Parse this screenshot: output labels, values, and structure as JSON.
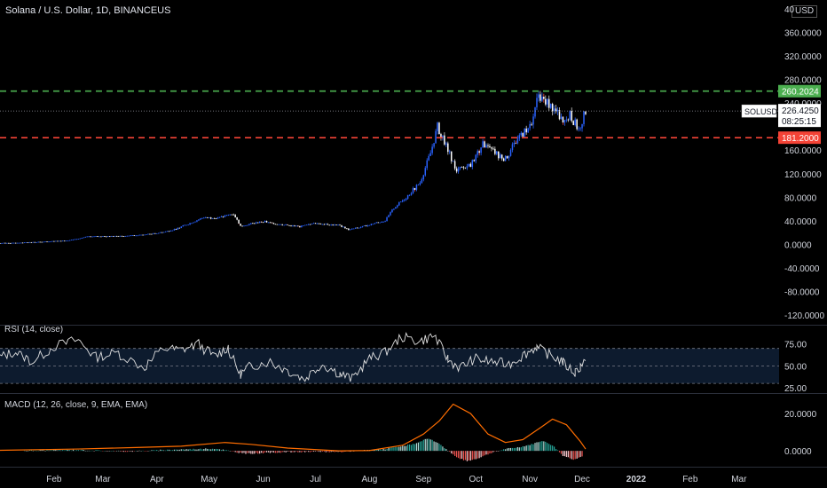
{
  "header": {
    "title": "Solana / U.S. Dollar, 1D, BINANCEUS",
    "currency": "USD"
  },
  "colors": {
    "up": "#2962ff",
    "down": "#ffffff",
    "resistance": "#4caf50",
    "support": "#f44336",
    "rsi_line": "#e0e0e0",
    "rsi_band": "#0d1b2e",
    "macd_signal": "#ff6d00",
    "macd_hist_up": "#26a69a",
    "macd_hist_down": "#ef5350"
  },
  "chart_data": {
    "type": "candlestick",
    "symbol": "SOLUSD",
    "main_pane": {
      "y_ticks": [
        360,
        320,
        280,
        240,
        160,
        120,
        80,
        40,
        0,
        -40,
        -80,
        -120
      ],
      "y_tick_labels": [
        "360.0000",
        "320.0000",
        "280.0000",
        "240.0000",
        "160.0000",
        "120.0000",
        "80.0000",
        "40.0000",
        "0.0000",
        "-40.0000",
        "-80.0000",
        "-120.0000"
      ],
      "top_label": "40",
      "ylim": [
        -135,
        415
      ],
      "last_price": 226.425,
      "last_price_label": "226.4250",
      "countdown": "08:25:15",
      "resistance": 260.2024,
      "resistance_label": "260.2024",
      "support": 181.2,
      "support_label": "181.2000",
      "approx_close_trend": [
        [
          "2021-01-01",
          2
        ],
        [
          "2021-01-25",
          4
        ],
        [
          "2021-02-10",
          7
        ],
        [
          "2021-02-20",
          13
        ],
        [
          "2021-03-05",
          14
        ],
        [
          "2021-03-20",
          15
        ],
        [
          "2021-04-01",
          19
        ],
        [
          "2021-04-10",
          24
        ],
        [
          "2021-04-20",
          36
        ],
        [
          "2021-04-28",
          46
        ],
        [
          "2021-05-05",
          44
        ],
        [
          "2021-05-15",
          52
        ],
        [
          "2021-05-19",
          31
        ],
        [
          "2021-05-25",
          35
        ],
        [
          "2021-06-01",
          39
        ],
        [
          "2021-06-10",
          34
        ],
        [
          "2021-06-22",
          30
        ],
        [
          "2021-07-01",
          36
        ],
        [
          "2021-07-15",
          32
        ],
        [
          "2021-07-20",
          25
        ],
        [
          "2021-07-28",
          30
        ],
        [
          "2021-08-05",
          37
        ],
        [
          "2021-08-10",
          40
        ],
        [
          "2021-08-15",
          62
        ],
        [
          "2021-08-22",
          80
        ],
        [
          "2021-08-30",
          105
        ],
        [
          "2021-09-05",
          155
        ],
        [
          "2021-09-09",
          200
        ],
        [
          "2021-09-15",
          160
        ],
        [
          "2021-09-20",
          125
        ],
        [
          "2021-09-28",
          135
        ],
        [
          "2021-10-05",
          170
        ],
        [
          "2021-10-12",
          155
        ],
        [
          "2021-10-18",
          145
        ],
        [
          "2021-10-25",
          180
        ],
        [
          "2021-11-01",
          200
        ],
        [
          "2021-11-06",
          255
        ],
        [
          "2021-11-12",
          240
        ],
        [
          "2021-11-20",
          210
        ],
        [
          "2021-11-24",
          220
        ],
        [
          "2021-11-29",
          195
        ],
        [
          "2021-12-03",
          226
        ]
      ]
    },
    "rsi_pane": {
      "label": "RSI (14, close)",
      "y_tick_labels": [
        "75.00",
        "50.00",
        "25.00"
      ],
      "y_ticks": [
        75,
        50,
        25
      ],
      "band": [
        30,
        70
      ],
      "ylim": [
        20,
        95
      ],
      "values": [
        [
          "2021-01-01",
          60
        ],
        [
          "2021-01-10",
          66
        ],
        [
          "2021-01-20",
          55
        ],
        [
          "2021-02-01",
          72
        ],
        [
          "2021-02-15",
          80
        ],
        [
          "2021-02-25",
          60
        ],
        [
          "2021-03-10",
          65
        ],
        [
          "2021-03-25",
          48
        ],
        [
          "2021-04-05",
          70
        ],
        [
          "2021-04-15",
          68
        ],
        [
          "2021-04-25",
          75
        ],
        [
          "2021-05-05",
          60
        ],
        [
          "2021-05-12",
          72
        ],
        [
          "2021-05-19",
          40
        ],
        [
          "2021-05-25",
          50
        ],
        [
          "2021-06-05",
          55
        ],
        [
          "2021-06-15",
          45
        ],
        [
          "2021-06-25",
          35
        ],
        [
          "2021-07-05",
          52
        ],
        [
          "2021-07-15",
          42
        ],
        [
          "2021-07-22",
          35
        ],
        [
          "2021-08-01",
          58
        ],
        [
          "2021-08-10",
          65
        ],
        [
          "2021-08-20",
          83
        ],
        [
          "2021-08-30",
          78
        ],
        [
          "2021-09-08",
          85
        ],
        [
          "2021-09-15",
          58
        ],
        [
          "2021-09-22",
          48
        ],
        [
          "2021-10-01",
          58
        ],
        [
          "2021-10-10",
          55
        ],
        [
          "2021-10-20",
          52
        ],
        [
          "2021-10-28",
          62
        ],
        [
          "2021-11-05",
          72
        ],
        [
          "2021-11-12",
          63
        ],
        [
          "2021-11-20",
          55
        ],
        [
          "2021-11-27",
          42
        ],
        [
          "2021-12-03",
          56
        ]
      ]
    },
    "macd_pane": {
      "label": "MACD (12, 26, close, 9, EMA, EMA)",
      "y_tick_labels": [
        "20.0000",
        "0.0000"
      ],
      "y_ticks": [
        20,
        0
      ],
      "ylim": [
        -8,
        30
      ],
      "signal": [
        [
          "2021-01-01",
          0.3
        ],
        [
          "2021-02-15",
          1.0
        ],
        [
          "2021-03-20",
          1.8
        ],
        [
          "2021-04-15",
          2.5
        ],
        [
          "2021-05-10",
          4.5
        ],
        [
          "2021-05-25",
          3.5
        ],
        [
          "2021-06-15",
          1.5
        ],
        [
          "2021-07-15",
          0.0
        ],
        [
          "2021-08-01",
          0.2
        ],
        [
          "2021-08-20",
          3.0
        ],
        [
          "2021-09-01",
          9.0
        ],
        [
          "2021-09-10",
          16.0
        ],
        [
          "2021-09-18",
          25.0
        ],
        [
          "2021-09-28",
          20.0
        ],
        [
          "2021-10-08",
          9.0
        ],
        [
          "2021-10-18",
          4.5
        ],
        [
          "2021-10-28",
          6.0
        ],
        [
          "2021-11-08",
          13.0
        ],
        [
          "2021-11-14",
          17.0
        ],
        [
          "2021-11-22",
          14.0
        ],
        [
          "2021-11-30",
          5.0
        ],
        [
          "2021-12-03",
          1.0
        ]
      ],
      "histogram": [
        [
          "2021-01-15",
          0.2
        ],
        [
          "2021-02-15",
          0.5
        ],
        [
          "2021-03-15",
          -0.3
        ],
        [
          "2021-04-15",
          0.8
        ],
        [
          "2021-05-05",
          1.2
        ],
        [
          "2021-05-22",
          -1.5
        ],
        [
          "2021-06-15",
          -0.6
        ],
        [
          "2021-07-15",
          -0.5
        ],
        [
          "2021-08-10",
          1.0
        ],
        [
          "2021-08-20",
          2.5
        ],
        [
          "2021-08-28",
          4.0
        ],
        [
          "2021-09-03",
          6.5
        ],
        [
          "2021-09-08",
          5.0
        ],
        [
          "2021-09-14",
          1.0
        ],
        [
          "2021-09-20",
          -3.5
        ],
        [
          "2021-09-26",
          -5.5
        ],
        [
          "2021-10-02",
          -4.0
        ],
        [
          "2021-10-10",
          -1.0
        ],
        [
          "2021-10-18",
          1.0
        ],
        [
          "2021-10-26",
          2.0
        ],
        [
          "2021-11-02",
          3.5
        ],
        [
          "2021-11-08",
          5.5
        ],
        [
          "2021-11-14",
          3.0
        ],
        [
          "2021-11-20",
          -2.5
        ],
        [
          "2021-11-26",
          -4.5
        ],
        [
          "2021-12-01",
          -3.0
        ]
      ]
    },
    "x_axis": {
      "tick_labels": [
        "Feb",
        "Mar",
        "Apr",
        "May",
        "Jun",
        "Jul",
        "Aug",
        "Sep",
        "Oct",
        "Nov",
        "Dec",
        "2022",
        "Feb",
        "Mar"
      ],
      "tick_dates": [
        "2021-02-01",
        "2021-03-01",
        "2021-04-01",
        "2021-05-01",
        "2021-06-01",
        "2021-07-01",
        "2021-08-01",
        "2021-09-01",
        "2021-10-01",
        "2021-11-01",
        "2021-12-01",
        "2022-01-01",
        "2022-02-01",
        "2022-03-01"
      ],
      "xlim": [
        "2021-01-01",
        "2022-03-24"
      ]
    }
  }
}
